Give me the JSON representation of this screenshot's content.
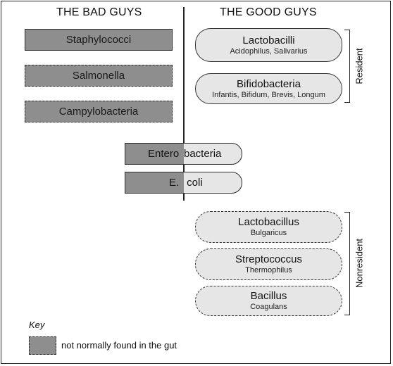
{
  "headers": {
    "bad": "THE BAD GUYS",
    "good": "THE GOOD GUYS"
  },
  "bad_guys": [
    {
      "name": "Staphylococci",
      "not_in_gut": false
    },
    {
      "name": "Salmonella",
      "not_in_gut": true
    },
    {
      "name": "Campylobacteria",
      "not_in_gut": true
    }
  ],
  "both": [
    {
      "name_bad_part": "Entero",
      "name_good_part": "bacteria"
    },
    {
      "name_bad_part": "E.",
      "name_good_part": " coli"
    }
  ],
  "good_guys": {
    "resident_label": "Resident",
    "resident": [
      {
        "name": "Lactobacilli",
        "strains": "Acidophilus, Salivarius"
      },
      {
        "name": "Bifidobacteria",
        "strains": "Infantis, Bifidum, Brevis, Longum"
      }
    ],
    "nonresident_label": "Nonresident",
    "nonresident": [
      {
        "name": "Lactobacillus",
        "strains": "Bulgaricus"
      },
      {
        "name": "Streptococcus",
        "strains": "Thermophilus"
      },
      {
        "name": "Bacillus",
        "strains": "Coagulans"
      }
    ]
  },
  "key": {
    "title": "Key",
    "swatch_label": "not normally found in the gut"
  },
  "colors": {
    "bad_fill": "#8e8e8e",
    "good_fill": "#e6e6e6",
    "line": "#222222"
  }
}
